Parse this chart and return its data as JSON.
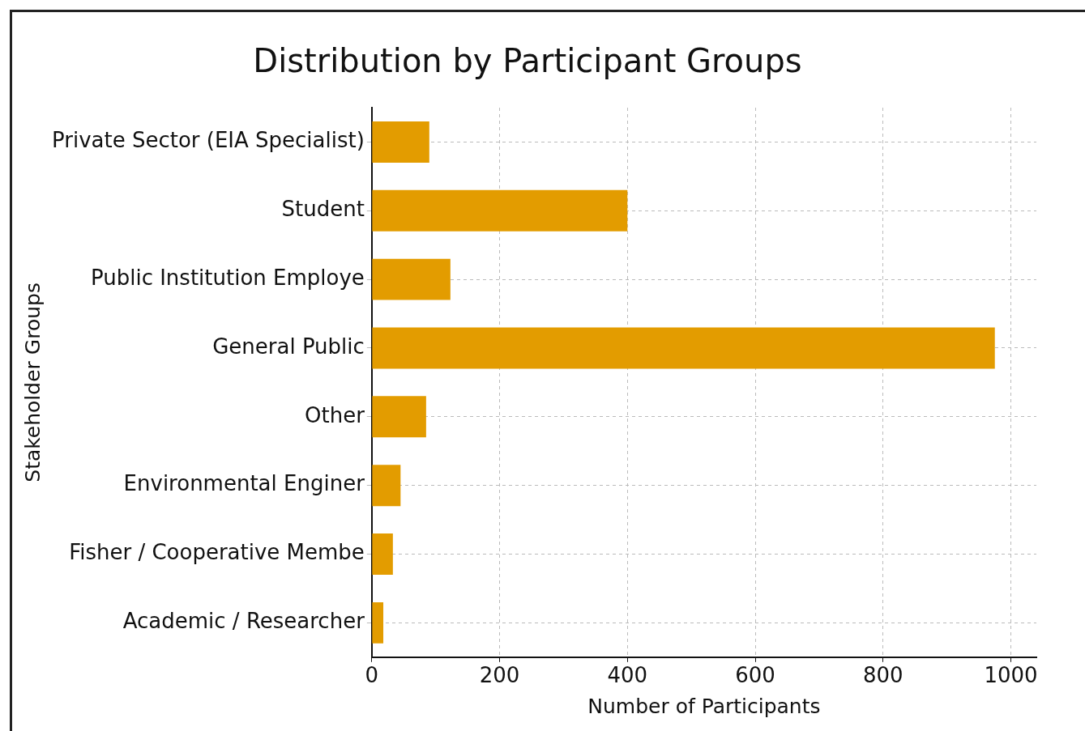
{
  "chart_data": {
    "type": "bar",
    "orientation": "horizontal",
    "title": "Distribution by Participant Groups",
    "xlabel": "Number of Participants",
    "ylabel": "Stakeholder Groups",
    "categories": [
      "Private Sector (EIA Specialist)",
      "Student",
      "Public Institution Employe",
      "General Public",
      "Other",
      "Environmental Enginer",
      "Fisher / Cooperative Membe",
      "Academic / Researcher"
    ],
    "values": [
      90,
      400,
      123,
      975,
      85,
      45,
      33,
      18
    ],
    "color": "#e39c00",
    "xlim": [
      0,
      1040
    ],
    "xticks": [
      0,
      200,
      400,
      600,
      800,
      1000
    ],
    "grid": true,
    "line_style": "dashed"
  }
}
